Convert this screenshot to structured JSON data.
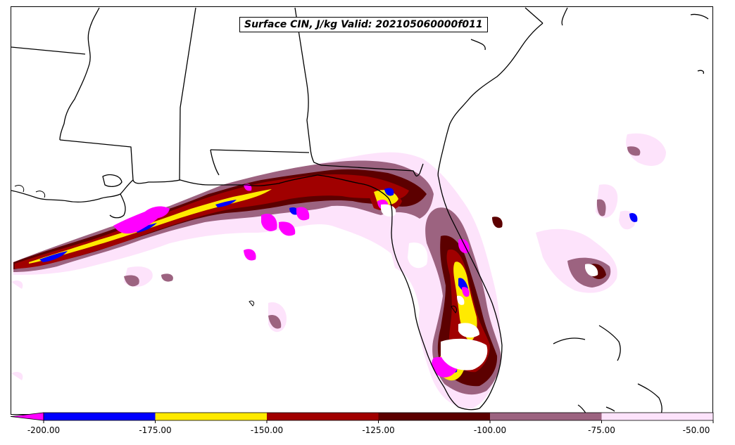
{
  "title": "Surface CIN, J/kg Valid: 202105060000f011",
  "colorbar": {
    "ticks": [
      "-200.00",
      "-175.00",
      "-150.00",
      "-125.00",
      "-100.00",
      "-75.00",
      "-50.00"
    ],
    "bins": [
      {
        "min": -200,
        "max": -175,
        "color": "#0000ff"
      },
      {
        "min": -175,
        "max": -150,
        "color": "#ffea00"
      },
      {
        "min": -150,
        "max": -125,
        "color": "#a00000"
      },
      {
        "min": -125,
        "max": -100,
        "color": "#5c0000"
      },
      {
        "min": -100,
        "max": -75,
        "color": "#9c6380"
      },
      {
        "min": -75,
        "max": -50,
        "color": "#fde3fb"
      }
    ],
    "under_color": "#ff00ff"
  },
  "colors": {
    "cin_under": "#ff00ff",
    "cin_m200": "#0000ff",
    "cin_m175": "#ffea00",
    "cin_m150": "#a00000",
    "cin_m125": "#5c0000",
    "cin_m100": "#9c6380",
    "cin_m75": "#fde3fb"
  }
}
